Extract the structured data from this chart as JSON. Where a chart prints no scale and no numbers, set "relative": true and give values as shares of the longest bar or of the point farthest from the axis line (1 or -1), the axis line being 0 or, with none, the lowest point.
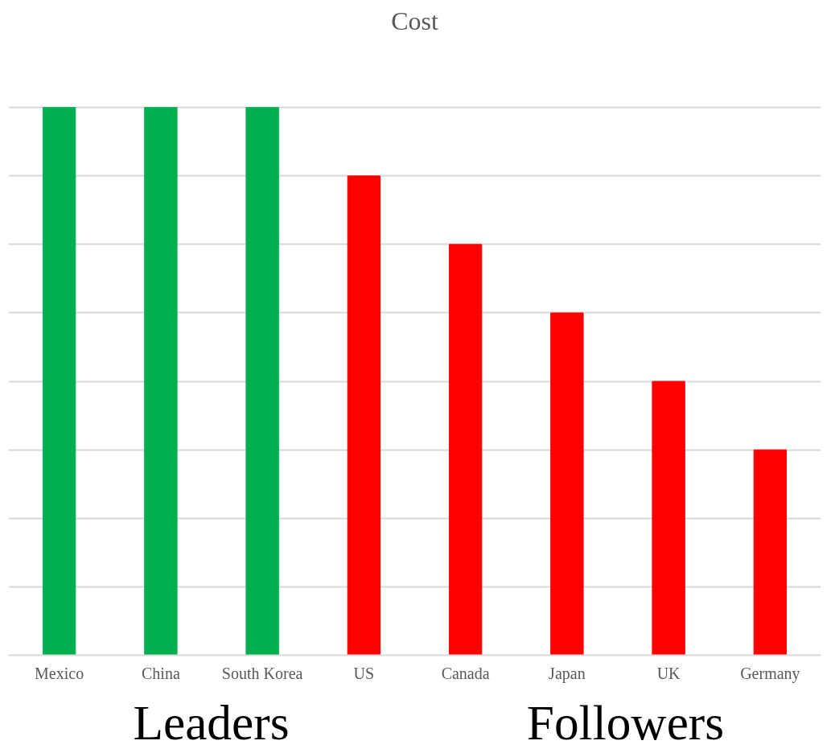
{
  "chart_data": {
    "type": "bar",
    "title": "Cost",
    "categories": [
      "Mexico",
      "China",
      "South Korea",
      "US",
      "Canada",
      "Japan",
      "UK",
      "Germany"
    ],
    "values": [
      1,
      1,
      1,
      0.875,
      0.75,
      0.625,
      0.5,
      0.375
    ],
    "colors": [
      "#00b050",
      "#00b050",
      "#00b050",
      "#ff0000",
      "#ff0000",
      "#ff0000",
      "#ff0000",
      "#ff0000"
    ],
    "relative": true,
    "grid": "y",
    "annotations": [
      "Leaders",
      "Followers"
    ]
  }
}
